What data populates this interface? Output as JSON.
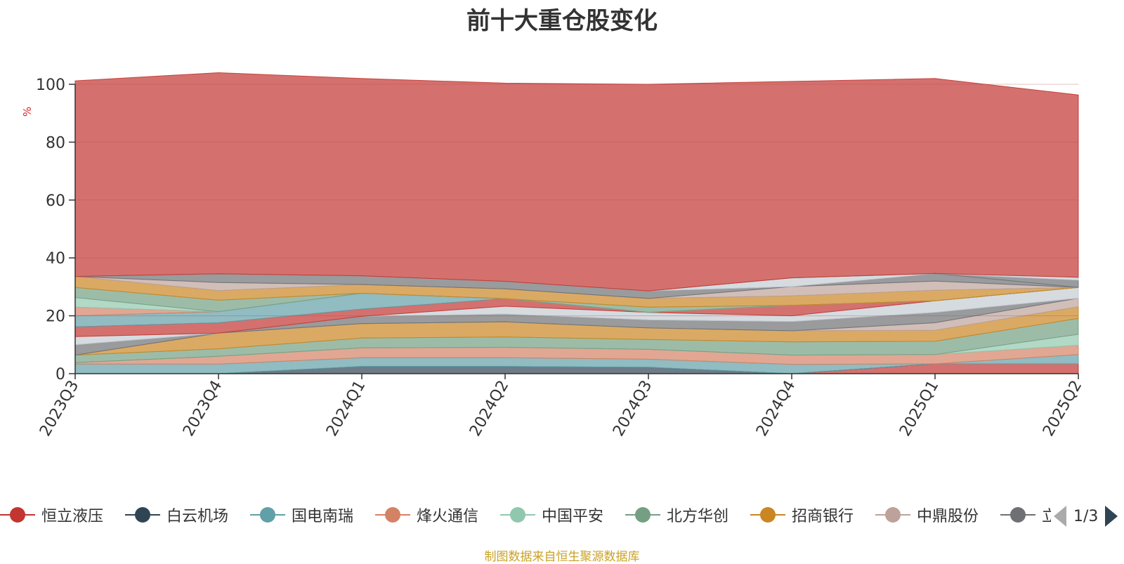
{
  "title": "前十大重仓股变化",
  "unit": "%",
  "source": "制图数据来自恒生聚源数据库",
  "legend": {
    "page": "1/3",
    "items": [
      {
        "name": "恒立液压",
        "color": "#c23531"
      },
      {
        "name": "白云机场",
        "color": "#2f4554"
      },
      {
        "name": "国电南瑞",
        "color": "#61a0a8"
      },
      {
        "name": "烽火通信",
        "color": "#d48265"
      },
      {
        "name": "中国平安",
        "color": "#91c7ae"
      },
      {
        "name": "北方华创",
        "color": "#749f83"
      },
      {
        "name": "招商银行",
        "color": "#ca8622"
      },
      {
        "name": "中鼎股份",
        "color": "#bda29a"
      },
      {
        "name": "立",
        "color": "#6e7074"
      }
    ]
  },
  "chart_data": {
    "type": "area",
    "stacked": true,
    "categories": [
      "2023Q3",
      "2023Q4",
      "2024Q1",
      "2024Q2",
      "2024Q3",
      "2024Q4",
      "2025Q1",
      "2025Q2"
    ],
    "ylim": [
      0,
      100
    ],
    "yticks": [
      0,
      20,
      40,
      60,
      80,
      100
    ],
    "ylabel": "%",
    "series": [
      {
        "name": "恒立液压",
        "color": "#c23531",
        "values": [
          0,
          0,
          0,
          0,
          0,
          0,
          3.4,
          3.4
        ]
      },
      {
        "name": "白云机场",
        "color": "#2f4554",
        "values": [
          0,
          0,
          2.5,
          2.5,
          2.2,
          0,
          0,
          0
        ]
      },
      {
        "name": "国电南瑞",
        "color": "#61a0a8",
        "values": [
          3.3,
          3.3,
          3.0,
          3.0,
          2.8,
          3.2,
          0,
          3.2
        ]
      },
      {
        "name": "烽火通信",
        "color": "#d48265",
        "values": [
          0.5,
          2.7,
          3.4,
          3.6,
          3.4,
          3.2,
          3.2,
          3.2
        ]
      },
      {
        "name": "中国平安",
        "color": "#91c7ae",
        "values": [
          0,
          0,
          0,
          0,
          0,
          0,
          0,
          3.8
        ]
      },
      {
        "name": "北方华创",
        "color": "#749f83",
        "values": [
          2.6,
          2.6,
          3.4,
          3.6,
          3.4,
          4.6,
          4.6,
          5.5
        ]
      },
      {
        "name": "招商银行",
        "color": "#ca8622",
        "values": [
          0,
          5.4,
          5.0,
          5.2,
          4.0,
          3.8,
          3.8,
          4.0
        ]
      },
      {
        "name": "中鼎股份",
        "color": "#bda29a",
        "values": [
          0,
          0,
          0,
          0,
          0,
          0,
          2.6,
          3.0
        ]
      },
      {
        "name": "立",
        "color": "#6e7074",
        "values": [
          3.6,
          0,
          2.5,
          2.7,
          2.8,
          3.2,
          3.6,
          0
        ]
      },
      {
        "name": "",
        "color": "#c4ccd3",
        "values": [
          2.8,
          0,
          0,
          2.7,
          2.6,
          2.0,
          4.0,
          3.7
        ]
      },
      {
        "name": "",
        "color": "#c23531",
        "values": [
          3.4,
          3.6,
          2.5,
          2.6,
          0,
          3.6,
          0,
          0
        ]
      },
      {
        "name": "",
        "color": "#61a0a8",
        "values": [
          3.8,
          3.8,
          5.5,
          0,
          0,
          0,
          0,
          0
        ]
      },
      {
        "name": "",
        "color": "#d48265",
        "values": [
          3.0,
          0,
          0,
          0,
          0,
          0,
          0,
          0
        ]
      },
      {
        "name": "",
        "color": "#91c7ae",
        "values": [
          3.3,
          0,
          0,
          0,
          0,
          0,
          0,
          0
        ]
      },
      {
        "name": "",
        "color": "#749f83",
        "values": [
          3.5,
          4.0,
          0,
          0,
          1.8,
          0,
          0,
          0
        ]
      },
      {
        "name": "",
        "color": "#ca8622",
        "values": [
          3.8,
          3.3,
          3.0,
          3.4,
          3.0,
          3.3,
          3.6,
          0
        ]
      },
      {
        "name": "",
        "color": "#bda29a",
        "values": [
          0,
          2.8,
          0,
          0,
          0,
          3.2,
          3.2,
          0
        ]
      },
      {
        "name": "",
        "color": "#6e7074",
        "values": [
          0,
          3.0,
          3.0,
          2.6,
          2.6,
          0,
          2.6,
          0
        ]
      },
      {
        "name": "",
        "color": "#c4ccd3",
        "values": [
          0,
          0,
          0,
          0,
          0,
          3.0,
          0,
          0
        ]
      },
      {
        "name": "",
        "color": "#6e7074",
        "values": [
          0,
          0,
          0,
          0,
          0,
          0,
          0,
          2.5
        ]
      },
      {
        "name": "",
        "color": "#c4ccd3",
        "values": [
          0,
          0,
          0,
          0,
          0,
          0,
          0,
          1.0
        ]
      },
      {
        "name": "",
        "color": "#c23531",
        "values": [
          67.6,
          69.5,
          68.2,
          68.5,
          71.4,
          67.9,
          67.4,
          63.0
        ]
      }
    ]
  }
}
